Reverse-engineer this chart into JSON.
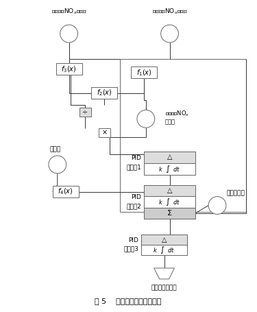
{
  "title": "图 5    新喷氨调节阀控制逻辑",
  "bg_color": "#ffffff",
  "text_color": "#000000",
  "fig_width": 3.75,
  "fig_height": 4.55,
  "dpi": 100,
  "top_label_left": "烟囱入口NO$_x$实际值",
  "top_label_right": "脱硝出口NO$_x$实际值",
  "label_nox_setpoint": "烟囱入口NO$_x$\n设定值",
  "label_total_air": "总风量",
  "label_actual_nh3": "实际喷氨量",
  "label_output": "喷氨调节阀输出",
  "label_f3": "$f_3(x)$",
  "label_f1": "$f_1(x)$",
  "label_f2": "$f_2(x)$",
  "label_f4": "$f_4(x)$",
  "label_div": "÷",
  "label_mul": "×",
  "pid_triangle": "△",
  "pid_inner": "$k$  $\\int$  $dt$",
  "pid_sigma": "Σ"
}
